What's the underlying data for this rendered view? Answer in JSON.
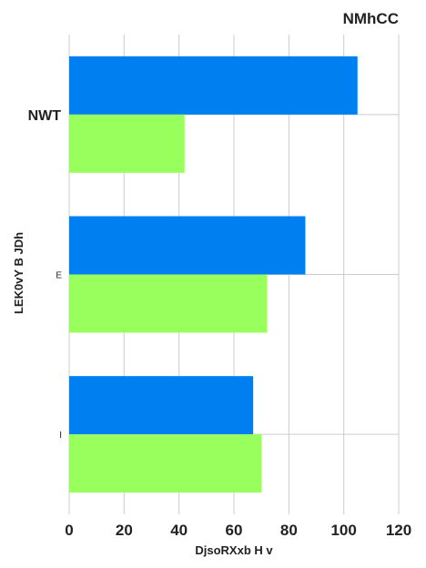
{
  "chart_data": {
    "type": "bar",
    "orientation": "horizontal",
    "title": "NMhCC",
    "xlabel": "DjsoRXxb H v",
    "ylabel": "LEK0vY B JDh",
    "categories": [
      "NWT",
      "E",
      "I"
    ],
    "series": [
      {
        "color": "#0080f0",
        "values": [
          105,
          86,
          67
        ]
      },
      {
        "color": "#99ff5c",
        "values": [
          42,
          72,
          70
        ]
      }
    ],
    "xlim": [
      0,
      120
    ],
    "xticks": [
      0,
      20,
      40,
      60,
      80,
      100,
      120
    ],
    "grid": true,
    "legend": "none"
  }
}
